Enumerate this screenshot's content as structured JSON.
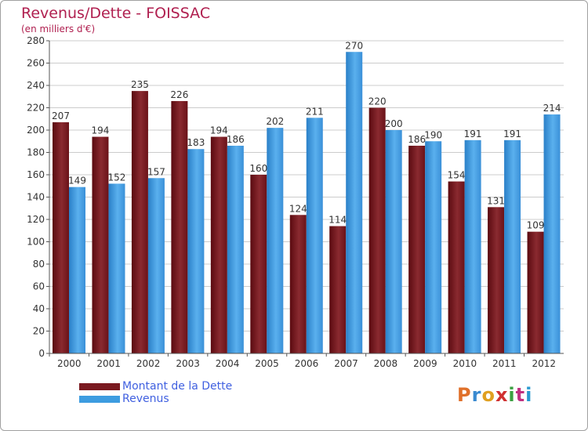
{
  "title": "Revenus/Dette - FOISSAC",
  "subtitle": "(en milliers d'€)",
  "logo": "Proxiti",
  "colors": {
    "dette": "#7a1a20",
    "revenus": "#3d9ce0",
    "title": "#b02050",
    "legend_text": "#4060e0"
  },
  "chart_data": {
    "type": "bar",
    "title": "Revenus/Dette - FOISSAC",
    "ylabel": "(en milliers d'€)",
    "xlabel": "",
    "ylim": [
      0,
      280
    ],
    "yticks": [
      0,
      20,
      40,
      60,
      80,
      100,
      120,
      140,
      160,
      180,
      200,
      220,
      240,
      260,
      280
    ],
    "grid": true,
    "legend_position": "bottom-left",
    "categories": [
      "2000",
      "2001",
      "2002",
      "2003",
      "2004",
      "2005",
      "2006",
      "2007",
      "2008",
      "2009",
      "2010",
      "2011",
      "2012"
    ],
    "series": [
      {
        "name": "Montant de la Dette",
        "color": "#7a1a20",
        "values": [
          207,
          194,
          235,
          226,
          194,
          160,
          124,
          114,
          220,
          186,
          154,
          131,
          109
        ]
      },
      {
        "name": "Revenus",
        "color": "#3d9ce0",
        "values": [
          149,
          152,
          157,
          183,
          186,
          202,
          211,
          270,
          200,
          190,
          191,
          191,
          214
        ]
      }
    ]
  }
}
